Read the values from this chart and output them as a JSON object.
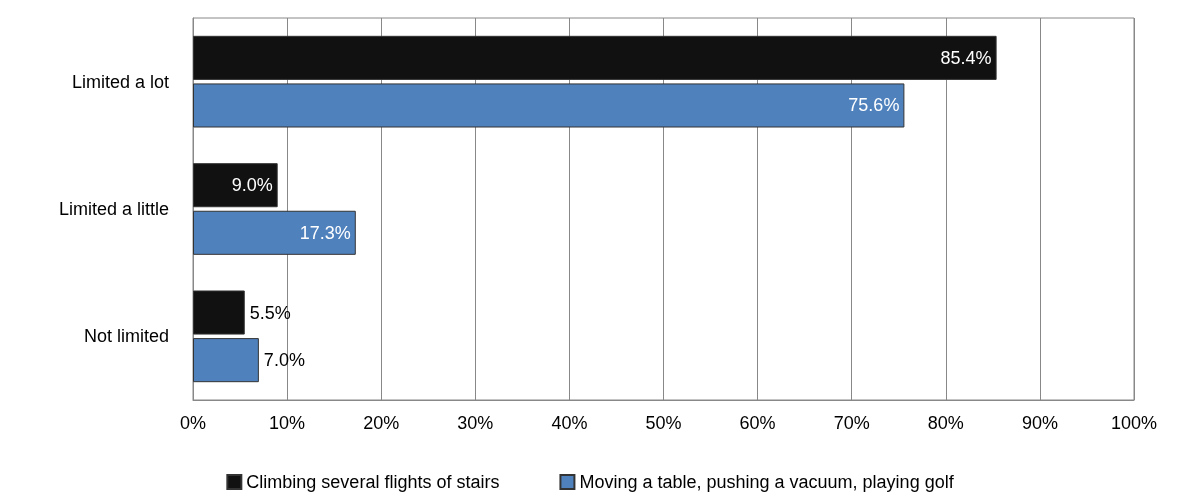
{
  "chart_data": {
    "type": "bar",
    "orientation": "horizontal",
    "categories": [
      "Limited a lot",
      "Limited a little",
      "Not limited"
    ],
    "series": [
      {
        "name": "Climbing several flights of stairs",
        "color": "#111111",
        "values": [
          85.4,
          9.0,
          5.5
        ],
        "value_labels": [
          "85.4%",
          "9.0%",
          "5.5%"
        ]
      },
      {
        "name": "Moving a table, pushing a vacuum, playing golf",
        "color": "#4f81bd",
        "values": [
          75.6,
          17.3,
          7.0
        ],
        "value_labels": [
          "75.6%",
          "17.3%",
          "7.0%"
        ]
      }
    ],
    "xlim": [
      0,
      100
    ],
    "xticks": [
      {
        "value": 0,
        "label": "0%"
      },
      {
        "value": 10,
        "label": "10%"
      },
      {
        "value": 20,
        "label": "20%"
      },
      {
        "value": 30,
        "label": "30%"
      },
      {
        "value": 40,
        "label": "40%"
      },
      {
        "value": 50,
        "label": "50%"
      },
      {
        "value": 60,
        "label": "60%"
      },
      {
        "value": 70,
        "label": "70%"
      },
      {
        "value": 80,
        "label": "80%"
      },
      {
        "value": 90,
        "label": "90%"
      },
      {
        "value": 100,
        "label": "100%"
      }
    ],
    "grid": "x",
    "legend": "bottom"
  }
}
